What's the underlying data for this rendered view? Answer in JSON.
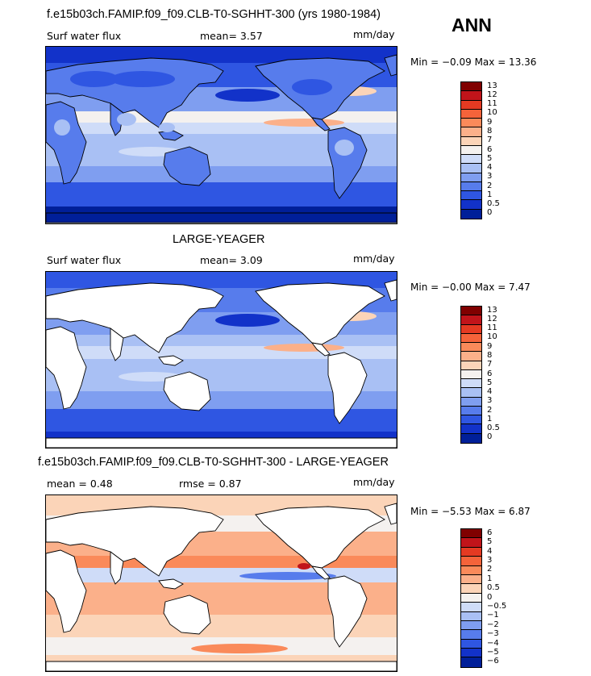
{
  "season": "ANN",
  "panels": [
    {
      "title": "f.e15b03ch.FAMIP.f09_f09.CLB-T0-SGHHT-300 (yrs 1980-1984)",
      "left_label": "Surf water flux",
      "mid_label": "mean=   3.57",
      "right_label": "mm/day",
      "minmax": "Min =  −0.09 Max =  13.36",
      "land": "ocean-and-land",
      "palette": "abs",
      "colorbar_labels": [
        "13",
        "12",
        "11",
        "10",
        "9",
        "8",
        "7",
        "6",
        "5",
        "4",
        "3",
        "2",
        "1",
        "0.5",
        "0"
      ]
    },
    {
      "title": "LARGE-YEAGER",
      "left_label": "Surf water flux",
      "mid_label": "mean=   3.09",
      "right_label": "mm/day",
      "minmax": "Min =  −0.00 Max =   7.47",
      "land": "ocean-only",
      "palette": "abs",
      "colorbar_labels": [
        "13",
        "12",
        "11",
        "10",
        "9",
        "8",
        "7",
        "6",
        "5",
        "4",
        "3",
        "2",
        "1",
        "0.5",
        "0"
      ]
    },
    {
      "title": "f.e15b03ch.FAMIP.f09_f09.CLB-T0-SGHHT-300 - LARGE-YEAGER",
      "left_label": "mean =   0.48",
      "mid_label": "rmse =   0.87",
      "right_label": "mm/day",
      "minmax": "Min =  −5.53 Max =   6.87",
      "land": "ocean-only",
      "palette": "diff",
      "colorbar_labels": [
        "6",
        "5",
        "4",
        "3",
        "2",
        "1",
        "0.5",
        "0",
        "−0.5",
        "−1",
        "−2",
        "−3",
        "−4",
        "−5",
        "−6"
      ]
    }
  ],
  "colors": {
    "abs": [
      "#800000",
      "#c1141a",
      "#e53a22",
      "#f5633a",
      "#fa8a5a",
      "#fbb08a",
      "#fbd4b8",
      "#f4f1ef",
      "#cfdcf8",
      "#a9c0f4",
      "#7f9ef0",
      "#577cec",
      "#2f56e2",
      "#1232c9",
      "#001f99"
    ],
    "diff": [
      "#800000",
      "#c1141a",
      "#e53a22",
      "#f5633a",
      "#fa8a5a",
      "#fbb08a",
      "#fbd4b8",
      "#f4f1ef",
      "#cfdcf8",
      "#a9c0f4",
      "#7f9ef0",
      "#577cec",
      "#2f56e2",
      "#1232c9",
      "#001f99"
    ]
  }
}
